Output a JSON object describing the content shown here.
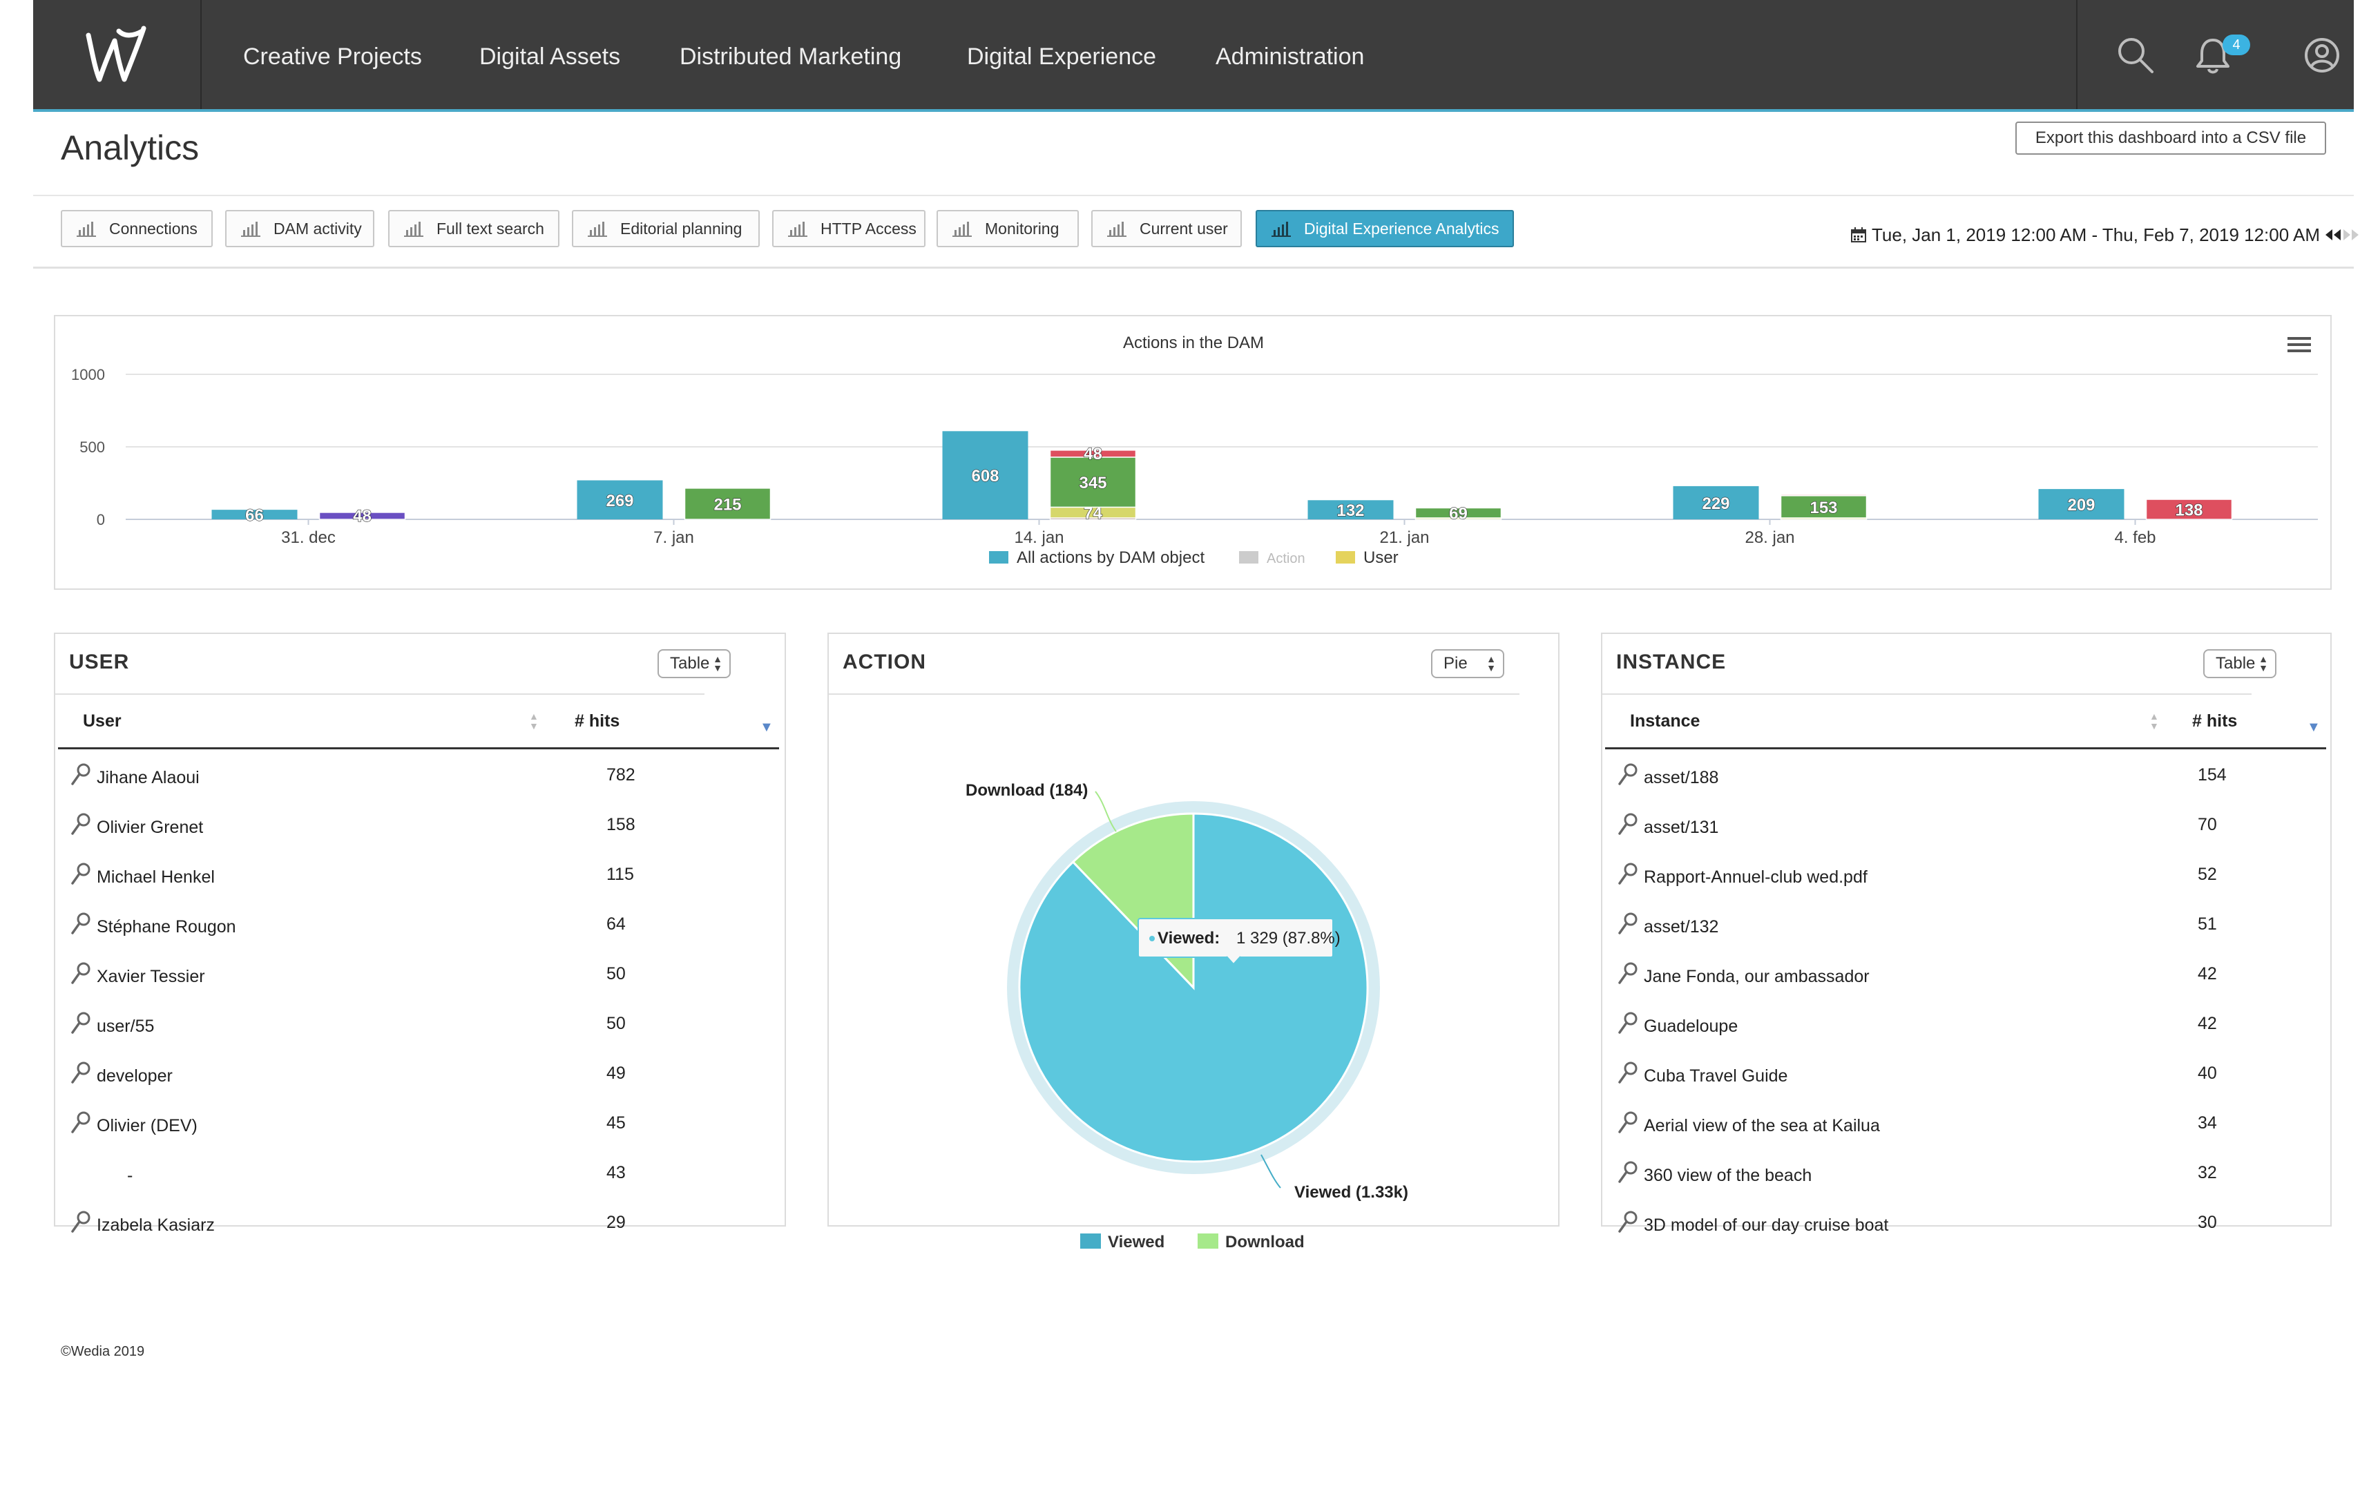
{
  "nav": {
    "logo_alt": "W",
    "items": [
      "Creative Projects",
      "Digital Assets",
      "Distributed Marketing",
      "Digital Experience",
      "Administration"
    ],
    "notification_count": "4"
  },
  "page": {
    "title": "Analytics",
    "export_label": "Export this dashboard into a CSV file",
    "tabs": [
      "Connections",
      "DAM activity",
      "Full text search",
      "Editorial planning",
      "HTTP Access",
      "Monitoring",
      "Current user",
      "Digital Experience Analytics"
    ],
    "active_tab": "Digital Experience Analytics",
    "date_range": "Tue, Jan 1, 2019 12:00 AM - Thu, Feb 7, 2019 12:00 AM"
  },
  "chart_data": {
    "type": "bar",
    "title": "Actions in the DAM",
    "yticks": [
      0,
      500,
      1000
    ],
    "ylim": [
      0,
      1000
    ],
    "categories": [
      "31. dec",
      "7. jan",
      "14. jan",
      "21. jan",
      "28. jan",
      "4. feb"
    ],
    "series": [
      {
        "name": "All actions by DAM object",
        "color": "#45adc7",
        "values": [
          66,
          269,
          608,
          132,
          229,
          209
        ]
      }
    ],
    "stacked_second_bars": [
      [
        {
          "value": 48,
          "color": "#6a4fc2"
        }
      ],
      [
        {
          "value": 215,
          "color": "#5ea64f"
        }
      ],
      [
        {
          "value": 10,
          "color": "#8a5a44"
        },
        {
          "value": 74,
          "color": "#d6d76a"
        },
        {
          "value": 345,
          "color": "#5ea64f"
        },
        {
          "value": 48,
          "color": "#de4f5f"
        }
      ],
      [
        {
          "value": 10,
          "color": "#d6d76a"
        },
        {
          "value": 69,
          "color": "#5ea64f"
        }
      ],
      [
        {
          "value": 10,
          "color": "#d6d76a"
        },
        {
          "value": 153,
          "color": "#5ea64f"
        },
        {
          "value": 8,
          "color": "#de4f5f"
        }
      ],
      [
        {
          "value": 138,
          "color": "#de4f5f"
        }
      ]
    ],
    "visible_bar_labels": [
      [
        "48"
      ],
      [
        "215"
      ],
      [
        "74",
        "345",
        "48"
      ],
      [
        "69"
      ],
      [
        "153"
      ],
      [
        "138"
      ]
    ],
    "legend": [
      {
        "label": "All actions by DAM object",
        "color": "#45adc7",
        "dimmed": false
      },
      {
        "label": "Action",
        "color": "#cccccc",
        "dimmed": true
      },
      {
        "label": "User",
        "color": "#e5d35c",
        "dimmed": false
      }
    ],
    "legend_position": "bottom-center",
    "grid": true
  },
  "user_widget": {
    "title": "USER",
    "view": "Table",
    "col1": "User",
    "col2": "# hits",
    "rows": [
      {
        "name": "Jihane Alaoui",
        "hits": "782",
        "icon": true
      },
      {
        "name": "Olivier Grenet",
        "hits": "158",
        "icon": true
      },
      {
        "name": "Michael Henkel",
        "hits": "115",
        "icon": true
      },
      {
        "name": "Stéphane Rougon",
        "hits": "64",
        "icon": true
      },
      {
        "name": "Xavier Tessier",
        "hits": "50",
        "icon": true
      },
      {
        "name": "user/55",
        "hits": "50",
        "icon": true
      },
      {
        "name": "developer",
        "hits": "49",
        "icon": true
      },
      {
        "name": "Olivier (DEV)",
        "hits": "45",
        "icon": true
      },
      {
        "name": "-",
        "hits": "43",
        "icon": false
      },
      {
        "name": "Izabela Kasiarz",
        "hits": "29",
        "icon": true
      }
    ]
  },
  "action_widget": {
    "title": "ACTION",
    "view": "Pie",
    "pie": {
      "slices": [
        {
          "name": "Viewed",
          "value": 1329,
          "color": "#5cc8de"
        },
        {
          "name": "Download",
          "value": 184,
          "color": "#a6e98a"
        }
      ],
      "label_download": "Download (184)",
      "label_viewed": "Viewed (1.33k)",
      "tooltip_series": "Viewed:",
      "tooltip_value": "1 329 (87.8%)"
    },
    "legend": [
      {
        "label": "Viewed",
        "color": "#45adc7"
      },
      {
        "label": "Download",
        "color": "#a6e98a"
      }
    ]
  },
  "instance_widget": {
    "title": "INSTANCE",
    "view": "Table",
    "col1": "Instance",
    "col2": "# hits",
    "rows": [
      {
        "name": "asset/188",
        "hits": "154"
      },
      {
        "name": "asset/131",
        "hits": "70"
      },
      {
        "name": "Rapport-Annuel-club wed.pdf",
        "hits": "52"
      },
      {
        "name": "asset/132",
        "hits": "51"
      },
      {
        "name": "Jane Fonda, our ambassador",
        "hits": "42"
      },
      {
        "name": "Guadeloupe",
        "hits": "42"
      },
      {
        "name": "Cuba Travel Guide",
        "hits": "40"
      },
      {
        "name": "Aerial view of the sea at Kailua",
        "hits": "34"
      },
      {
        "name": "360 view of the beach",
        "hits": "32"
      },
      {
        "name": "3D model of our day cruise boat",
        "hits": "30"
      }
    ]
  },
  "footer": "©Wedia 2019"
}
